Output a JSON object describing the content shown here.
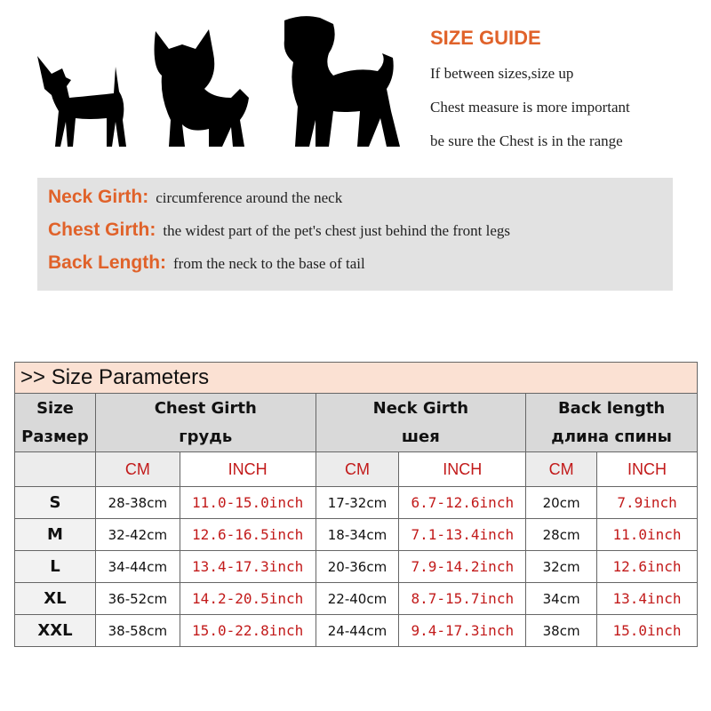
{
  "guide": {
    "title": "SIZE GUIDE",
    "lines": [
      "If between sizes,size up",
      "Chest measure is more important",
      "be sure the Chest is in the range"
    ]
  },
  "definitions": [
    {
      "term": "Neck Girth:",
      "text": "circumference around the neck"
    },
    {
      "term": "Chest Girth:",
      "text": "the widest part of the pet's chest just behind the front legs"
    },
    {
      "term": "Back Length:",
      "text": "from the neck to the base of tail"
    }
  ],
  "table": {
    "title": ">> Size Parameters",
    "headers": [
      {
        "en": "Size",
        "ru": "Размер"
      },
      {
        "en": "Chest Girth",
        "ru": "грудь"
      },
      {
        "en": "Neck Girth",
        "ru": "шея"
      },
      {
        "en": "Back length",
        "ru": "длина спины"
      }
    ],
    "units": [
      "CM",
      "INCH",
      "CM",
      "INCH",
      "CM",
      "INCH"
    ],
    "rows": [
      [
        "S",
        "28-38cm",
        "11.0-15.0inch",
        "17-32cm",
        "6.7-12.6inch",
        "20cm",
        "7.9inch"
      ],
      [
        "M",
        "32-42cm",
        "12.6-16.5inch",
        "18-34cm",
        "7.1-13.4inch",
        "28cm",
        "11.0inch"
      ],
      [
        "L",
        "34-44cm",
        "13.4-17.3inch",
        "20-36cm",
        "7.9-14.2inch",
        "32cm",
        "12.6inch"
      ],
      [
        "XL",
        "36-52cm",
        "14.2-20.5inch",
        "22-40cm",
        "8.7-15.7inch",
        "34cm",
        "13.4inch"
      ],
      [
        "XXL",
        "38-58cm",
        "15.0-22.8inch",
        "24-44cm",
        "9.4-17.3inch",
        "38cm",
        "15.0inch"
      ]
    ]
  },
  "colors": {
    "accent": "#e0622a",
    "inch": "#c21a1a",
    "title_bg": "#fbe1d3",
    "header_bg": "#d9d9d9"
  }
}
